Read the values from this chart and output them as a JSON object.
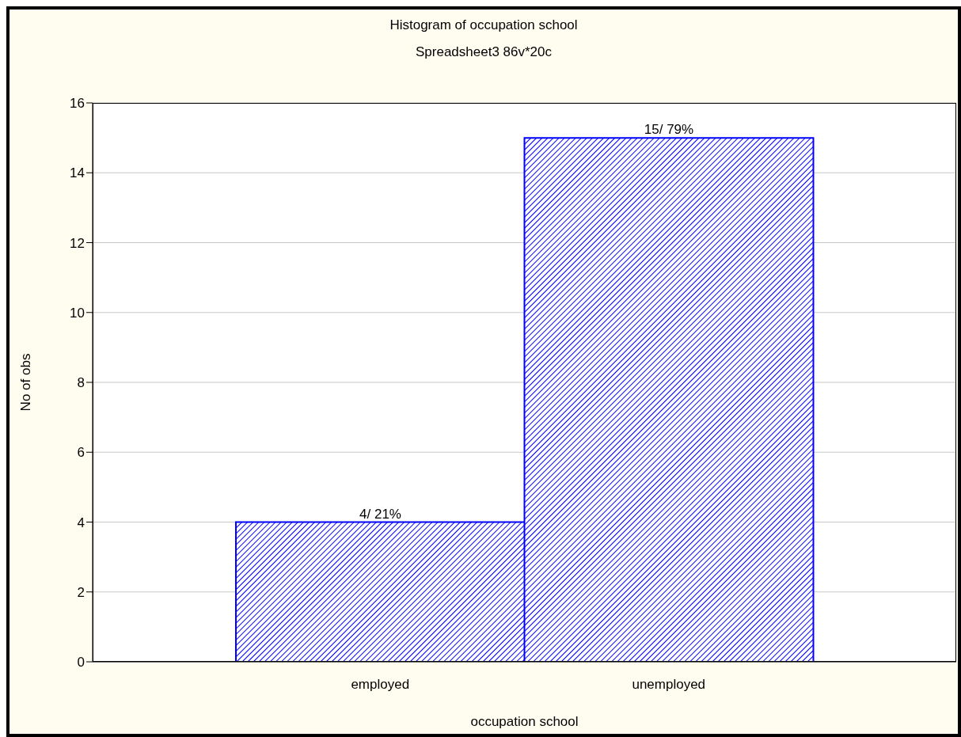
{
  "chart_data": {
    "type": "bar",
    "title": "Histogram of occupation school",
    "subtitle": "Spreadsheet3 86v*20c",
    "xlabel": "occupation school",
    "ylabel": "No of obs",
    "categories": [
      "employed",
      "unemployed"
    ],
    "values": [
      4,
      15
    ],
    "value_labels": [
      "4/ 21%",
      "15/ 79%"
    ],
    "color": "#0000ff",
    "ylim": [
      0,
      16
    ],
    "yticks": [
      0,
      2,
      4,
      6,
      8,
      10,
      12,
      14,
      16
    ],
    "grid": "y",
    "legend": false
  }
}
